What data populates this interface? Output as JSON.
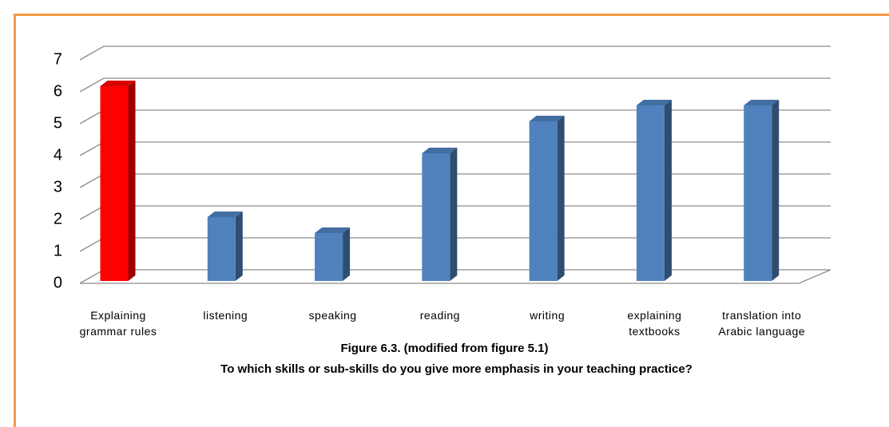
{
  "chart_data": {
    "type": "bar3d",
    "categories": [
      "Explaining grammar rules",
      "listening",
      "speaking",
      "reading",
      "writing",
      "explaining textbooks",
      "translation into Arabic language"
    ],
    "values": [
      6.1,
      2.0,
      1.5,
      4.0,
      5.0,
      5.5,
      5.5
    ],
    "colors": [
      "#ff0000",
      "#4f81bd",
      "#4f81bd",
      "#4f81bd",
      "#4f81bd",
      "#4f81bd",
      "#4f81bd"
    ],
    "ylim": [
      0,
      7
    ],
    "yticks": [
      0,
      1,
      2,
      3,
      4,
      5,
      6,
      7
    ],
    "grid": true,
    "caption": [
      "Figure  6.3. (modified from figure 5.1)",
      "To which skills or sub-skills do you give more emphasis in your teaching practice?"
    ]
  }
}
